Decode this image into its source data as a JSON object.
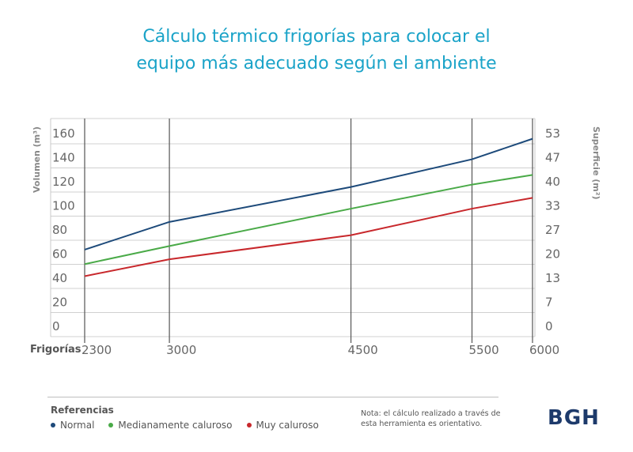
{
  "title": {
    "line1": "Cálculo térmico frigorías para colocar el",
    "line2": "equipo más adecuado según el ambiente"
  },
  "chart_data": {
    "type": "line",
    "xlabel": "Frigorías",
    "ylabel_left": "Volumen (m³)",
    "ylabel_right": "Superficie (m²)",
    "x": [
      2300,
      3000,
      4500,
      5500,
      6000
    ],
    "x_tick_labels": [
      "2300",
      "3000",
      "4500",
      "5500",
      "6000"
    ],
    "ylim": [
      0,
      160
    ],
    "y_left_ticks": [
      "0",
      "20",
      "40",
      "60",
      "80",
      "100",
      "120",
      "140",
      "160"
    ],
    "y_right_ticks": [
      "0",
      "7",
      "13",
      "20",
      "27",
      "33",
      "40",
      "47",
      "53"
    ],
    "grid": true,
    "series": [
      {
        "name": "Normal",
        "color": "#1d4a7a",
        "values": [
          63,
          86,
          115,
          138,
          155
        ]
      },
      {
        "name": "Medianamente caluroso",
        "color": "#4aaa48",
        "values": [
          51,
          66,
          97,
          117,
          125
        ]
      },
      {
        "name": "Muy caluroso",
        "color": "#c8282c",
        "values": [
          41,
          55,
          75,
          97,
          106
        ]
      }
    ]
  },
  "legend": {
    "title": "Referencias"
  },
  "note": {
    "line1": "Nota: el cálculo realizado a través de",
    "line2": "esta herramienta es orientativo."
  },
  "brand": "BGH"
}
